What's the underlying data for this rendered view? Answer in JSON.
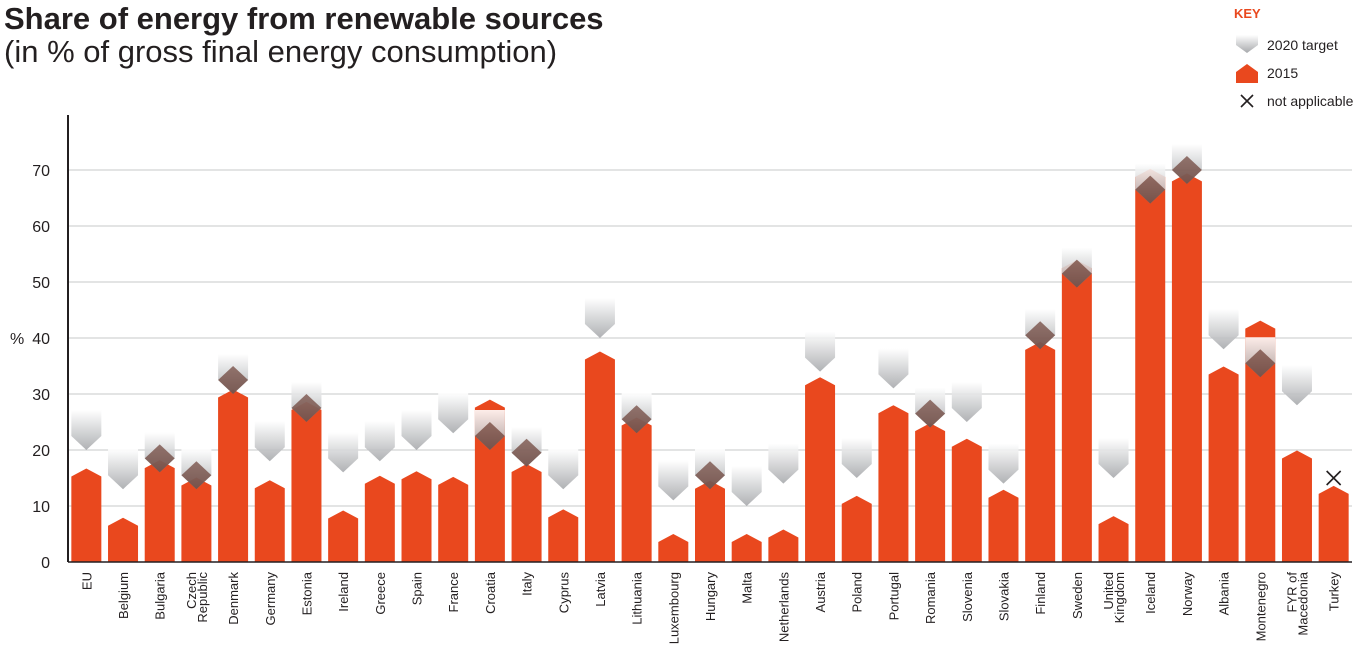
{
  "colors": {
    "bar": "#e9481e",
    "target_light": "#ffffff",
    "target_dark": "#a7a9ac",
    "marker_dark": "#4a1206",
    "grid": "#c7c8ca",
    "axis": "#231f20",
    "key": "#e9481e"
  },
  "legend": {
    "title": "KEY",
    "items": [
      {
        "label": "2020 target",
        "icon": "target-chevron-icon"
      },
      {
        "label": "2015",
        "icon": "house-bar-icon"
      },
      {
        "label": "not applicable",
        "icon": "cross-icon"
      }
    ]
  },
  "chart_data": {
    "type": "bar",
    "title": "Share of energy from renewable sources",
    "subtitle": "(in % of gross final energy consumption)",
    "xlabel": "",
    "ylabel": "%",
    "ylim": [
      0,
      80
    ],
    "yticks": [
      0,
      10,
      20,
      30,
      40,
      50,
      60,
      70
    ],
    "grid": true,
    "legend_position": "top-right",
    "categories": [
      [
        "EU"
      ],
      [
        "Belgium"
      ],
      [
        "Bulgaria"
      ],
      [
        "Czech",
        "Republic"
      ],
      [
        "Denmark"
      ],
      [
        "Germany"
      ],
      [
        "Estonia"
      ],
      [
        "Ireland"
      ],
      [
        "Greece"
      ],
      [
        "Spain"
      ],
      [
        "France"
      ],
      [
        "Croatia"
      ],
      [
        "Italy"
      ],
      [
        "Cyprus"
      ],
      [
        "Latvia"
      ],
      [
        "Lithuania"
      ],
      [
        "Luxembourg"
      ],
      [
        "Hungary"
      ],
      [
        "Malta"
      ],
      [
        "Netherlands"
      ],
      [
        "Austria"
      ],
      [
        "Poland"
      ],
      [
        "Portugal"
      ],
      [
        "Romania"
      ],
      [
        "Slovenia"
      ],
      [
        "Slovakia"
      ],
      [
        "Finland"
      ],
      [
        "Sweden"
      ],
      [
        "United",
        "Kingdom"
      ],
      [
        "Iceland"
      ],
      [
        "Norway"
      ],
      [
        "Albania"
      ],
      [
        "Montenegro"
      ],
      [
        "FYR of",
        "Macedonia"
      ],
      [
        "Turkey"
      ]
    ],
    "series": [
      {
        "name": "2015",
        "values": [
          16.7,
          7.9,
          18.2,
          15.1,
          30.8,
          14.6,
          28.6,
          9.2,
          15.4,
          16.2,
          15.2,
          29.0,
          17.5,
          9.4,
          37.6,
          25.8,
          5.0,
          14.5,
          5.0,
          5.8,
          33.0,
          11.8,
          28.0,
          24.8,
          22.0,
          12.9,
          39.3,
          53.9,
          8.2,
          70.2,
          69.4,
          34.9,
          43.1,
          19.9,
          13.6
        ]
      },
      {
        "name": "2020 target",
        "values": [
          20,
          13,
          16,
          13,
          30,
          18,
          25,
          16,
          18,
          20,
          23,
          20,
          17,
          13,
          40,
          23,
          11,
          13,
          10,
          14,
          34,
          15,
          31,
          24,
          25,
          14,
          38,
          49,
          15,
          64,
          67.5,
          38,
          33,
          28,
          null
        ],
        "not_applicable": [
          "Turkey"
        ]
      }
    ]
  }
}
